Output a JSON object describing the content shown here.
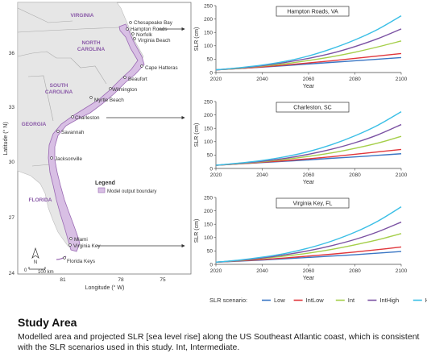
{
  "map": {
    "states": [
      "VIRGINIA",
      "NORTH CAROLINA",
      "SOUTH CAROLINA",
      "GEORGIA",
      "FLORIDA"
    ],
    "places": [
      "Chesapeake Bay",
      "Hampton Roads",
      "Norfolk",
      "Virginia Beach",
      "Cape Hatteras",
      "Beaufort",
      "Wilmington",
      "Myrtle Beach",
      "Charleston",
      "Savannah",
      "Jacksonville",
      "Miami",
      "Virginia Key",
      "Florida Keys"
    ],
    "lat_ticks": [
      "36",
      "33",
      "30",
      "27",
      "24"
    ],
    "lon_ticks": [
      "81",
      "78",
      "75"
    ],
    "ylabel": "Latitude (° N)",
    "xlabel": "Longitude (° W)",
    "legend_title": "Legend",
    "legend_item": "Model output boundary",
    "scale_label": "100 km",
    "scale_zero": "0",
    "north_label": "N",
    "colors": {
      "land": "#e5e5e5",
      "water": "#ffffff",
      "model_area": "#d8bfe4",
      "model_edge": "#9a6ab3",
      "state_label": "#8a5aa8"
    }
  },
  "chart_data": [
    {
      "type": "line",
      "title": "Hampton Roads, VA",
      "xlabel": "Year",
      "ylabel": "SLR (cm)",
      "xlim": [
        2020,
        2100
      ],
      "ylim": [
        0,
        250
      ],
      "x_ticks": [
        2020,
        2040,
        2060,
        2080,
        2100
      ],
      "y_ticks": [
        0,
        50,
        100,
        150,
        200,
        250
      ],
      "x": [
        2020,
        2030,
        2040,
        2050,
        2060,
        2070,
        2080,
        2090,
        2100
      ],
      "series": [
        {
          "name": "Low",
          "color": "#3a76c4",
          "values": [
            10,
            15,
            20,
            26,
            32,
            38,
            44,
            50,
            56
          ]
        },
        {
          "name": "IntLow",
          "color": "#e0363b",
          "values": [
            10,
            15,
            21,
            28,
            36,
            44,
            53,
            62,
            71
          ]
        },
        {
          "name": "Int",
          "color": "#a5cf4a",
          "values": [
            10,
            16,
            24,
            33,
            45,
            59,
            76,
            96,
            118
          ]
        },
        {
          "name": "IntHigh",
          "color": "#7b52a3",
          "values": [
            10,
            17,
            26,
            38,
            53,
            72,
            97,
            127,
            163
          ]
        },
        {
          "name": "High",
          "color": "#3bbfe6",
          "values": [
            10,
            18,
            28,
            42,
            62,
            89,
            122,
            162,
            212
          ]
        }
      ]
    },
    {
      "type": "line",
      "title": "Charleston, SC",
      "xlabel": "Year",
      "ylabel": "SLR (cm)",
      "xlim": [
        2020,
        2100
      ],
      "ylim": [
        0,
        250
      ],
      "x_ticks": [
        2020,
        2040,
        2060,
        2080,
        2100
      ],
      "y_ticks": [
        0,
        50,
        100,
        150,
        200,
        250
      ],
      "x": [
        2020,
        2030,
        2040,
        2050,
        2060,
        2070,
        2080,
        2090,
        2100
      ],
      "series": [
        {
          "name": "Low",
          "color": "#3a76c4",
          "values": [
            12,
            17,
            22,
            27,
            32,
            38,
            43,
            49,
            55
          ]
        },
        {
          "name": "IntLow",
          "color": "#e0363b",
          "values": [
            12,
            17,
            23,
            29,
            36,
            44,
            53,
            62,
            71
          ]
        },
        {
          "name": "Int",
          "color": "#a5cf4a",
          "values": [
            12,
            18,
            25,
            34,
            45,
            58,
            75,
            95,
            120
          ]
        },
        {
          "name": "IntHigh",
          "color": "#7b52a3",
          "values": [
            12,
            19,
            27,
            38,
            53,
            72,
            96,
            126,
            164
          ]
        },
        {
          "name": "High",
          "color": "#3bbfe6",
          "values": [
            12,
            20,
            30,
            44,
            63,
            89,
            122,
            162,
            212
          ]
        }
      ]
    },
    {
      "type": "line",
      "title": "Virginia Key, FL",
      "xlabel": "Year",
      "ylabel": "SLR (cm)",
      "xlim": [
        2020,
        2100
      ],
      "ylim": [
        0,
        250
      ],
      "x_ticks": [
        2020,
        2040,
        2060,
        2080,
        2100
      ],
      "y_ticks": [
        0,
        50,
        100,
        150,
        200,
        250
      ],
      "x": [
        2020,
        2030,
        2040,
        2050,
        2060,
        2070,
        2080,
        2090,
        2100
      ],
      "series": [
        {
          "name": "Low",
          "color": "#3a76c4",
          "values": [
            8,
            12,
            16,
            21,
            26,
            31,
            36,
            42,
            48
          ]
        },
        {
          "name": "IntLow",
          "color": "#e0363b",
          "values": [
            8,
            13,
            18,
            24,
            31,
            38,
            46,
            55,
            65
          ]
        },
        {
          "name": "Int",
          "color": "#a5cf4a",
          "values": [
            8,
            14,
            22,
            31,
            42,
            56,
            73,
            92,
            115
          ]
        },
        {
          "name": "IntHigh",
          "color": "#7b52a3",
          "values": [
            8,
            15,
            24,
            36,
            51,
            70,
            93,
            122,
            158
          ]
        },
        {
          "name": "High",
          "color": "#3bbfe6",
          "values": [
            8,
            16,
            27,
            41,
            61,
            87,
            120,
            162,
            215
          ]
        }
      ]
    }
  ],
  "legend": {
    "title": "SLR scenario:",
    "items": [
      {
        "name": "Low",
        "color": "#3a76c4"
      },
      {
        "name": "IntLow",
        "color": "#e0363b"
      },
      {
        "name": "Int",
        "color": "#a5cf4a"
      },
      {
        "name": "IntHigh",
        "color": "#7b52a3"
      },
      {
        "name": "High",
        "color": "#3bbfe6"
      }
    ]
  },
  "caption": {
    "title": "Study Area",
    "text": "Modelled area and projected SLR [sea level rise] along the US Southeast Atlantic coast, which is consistent with the SLR scenarios used in this study. Int, Intermediate."
  }
}
